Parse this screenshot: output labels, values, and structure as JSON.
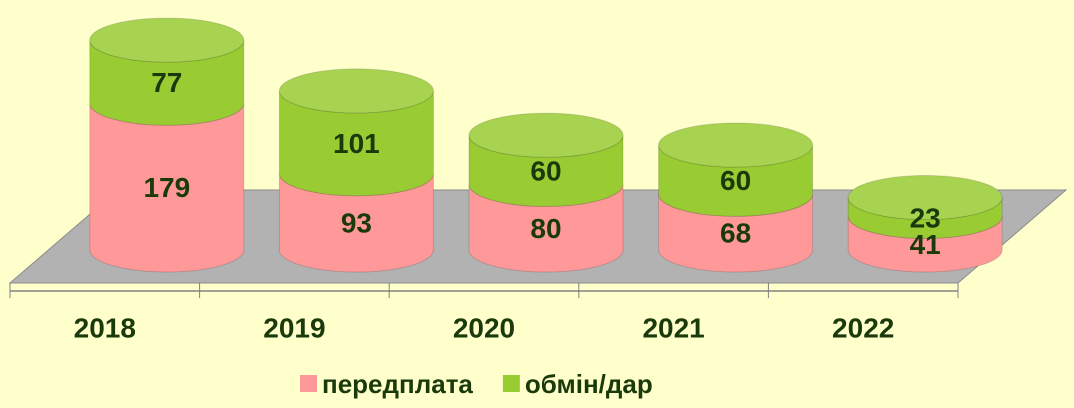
{
  "chart_data": {
    "type": "bar",
    "stacked": true,
    "shape": "cylinder",
    "categories": [
      "2018",
      "2019",
      "2020",
      "2021",
      "2022"
    ],
    "series": [
      {
        "name": "передплата",
        "color": "#FF9999",
        "values": [
          179,
          93,
          80,
          68,
          41
        ]
      },
      {
        "name": "обмін/дар",
        "color": "#99CC33",
        "values": [
          77,
          101,
          60,
          60,
          23
        ]
      }
    ],
    "legend": "bottom"
  }
}
